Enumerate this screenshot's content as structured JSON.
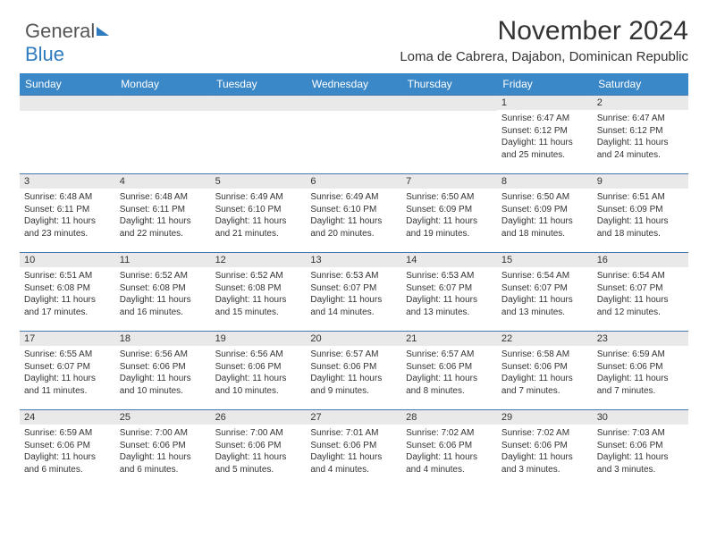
{
  "logo": {
    "part1": "General",
    "part2": "Blue"
  },
  "title": "November 2024",
  "subtitle": "Loma de Cabrera, Dajabon, Dominican Republic",
  "colors": {
    "header_bg": "#3b88c8",
    "header_text": "#ffffff",
    "row_divider": "#4477aa",
    "daynum_bg": "#e9e9e9",
    "text": "#333333",
    "logo_blue": "#2f7bbf"
  },
  "dayNames": [
    "Sunday",
    "Monday",
    "Tuesday",
    "Wednesday",
    "Thursday",
    "Friday",
    "Saturday"
  ],
  "startOffset": 5,
  "days": [
    {
      "n": 1,
      "rise": "6:47 AM",
      "set": "6:12 PM",
      "dl": "11 hours and 25 minutes."
    },
    {
      "n": 2,
      "rise": "6:47 AM",
      "set": "6:12 PM",
      "dl": "11 hours and 24 minutes."
    },
    {
      "n": 3,
      "rise": "6:48 AM",
      "set": "6:11 PM",
      "dl": "11 hours and 23 minutes."
    },
    {
      "n": 4,
      "rise": "6:48 AM",
      "set": "6:11 PM",
      "dl": "11 hours and 22 minutes."
    },
    {
      "n": 5,
      "rise": "6:49 AM",
      "set": "6:10 PM",
      "dl": "11 hours and 21 minutes."
    },
    {
      "n": 6,
      "rise": "6:49 AM",
      "set": "6:10 PM",
      "dl": "11 hours and 20 minutes."
    },
    {
      "n": 7,
      "rise": "6:50 AM",
      "set": "6:09 PM",
      "dl": "11 hours and 19 minutes."
    },
    {
      "n": 8,
      "rise": "6:50 AM",
      "set": "6:09 PM",
      "dl": "11 hours and 18 minutes."
    },
    {
      "n": 9,
      "rise": "6:51 AM",
      "set": "6:09 PM",
      "dl": "11 hours and 18 minutes."
    },
    {
      "n": 10,
      "rise": "6:51 AM",
      "set": "6:08 PM",
      "dl": "11 hours and 17 minutes."
    },
    {
      "n": 11,
      "rise": "6:52 AM",
      "set": "6:08 PM",
      "dl": "11 hours and 16 minutes."
    },
    {
      "n": 12,
      "rise": "6:52 AM",
      "set": "6:08 PM",
      "dl": "11 hours and 15 minutes."
    },
    {
      "n": 13,
      "rise": "6:53 AM",
      "set": "6:07 PM",
      "dl": "11 hours and 14 minutes."
    },
    {
      "n": 14,
      "rise": "6:53 AM",
      "set": "6:07 PM",
      "dl": "11 hours and 13 minutes."
    },
    {
      "n": 15,
      "rise": "6:54 AM",
      "set": "6:07 PM",
      "dl": "11 hours and 13 minutes."
    },
    {
      "n": 16,
      "rise": "6:54 AM",
      "set": "6:07 PM",
      "dl": "11 hours and 12 minutes."
    },
    {
      "n": 17,
      "rise": "6:55 AM",
      "set": "6:07 PM",
      "dl": "11 hours and 11 minutes."
    },
    {
      "n": 18,
      "rise": "6:56 AM",
      "set": "6:06 PM",
      "dl": "11 hours and 10 minutes."
    },
    {
      "n": 19,
      "rise": "6:56 AM",
      "set": "6:06 PM",
      "dl": "11 hours and 10 minutes."
    },
    {
      "n": 20,
      "rise": "6:57 AM",
      "set": "6:06 PM",
      "dl": "11 hours and 9 minutes."
    },
    {
      "n": 21,
      "rise": "6:57 AM",
      "set": "6:06 PM",
      "dl": "11 hours and 8 minutes."
    },
    {
      "n": 22,
      "rise": "6:58 AM",
      "set": "6:06 PM",
      "dl": "11 hours and 7 minutes."
    },
    {
      "n": 23,
      "rise": "6:59 AM",
      "set": "6:06 PM",
      "dl": "11 hours and 7 minutes."
    },
    {
      "n": 24,
      "rise": "6:59 AM",
      "set": "6:06 PM",
      "dl": "11 hours and 6 minutes."
    },
    {
      "n": 25,
      "rise": "7:00 AM",
      "set": "6:06 PM",
      "dl": "11 hours and 6 minutes."
    },
    {
      "n": 26,
      "rise": "7:00 AM",
      "set": "6:06 PM",
      "dl": "11 hours and 5 minutes."
    },
    {
      "n": 27,
      "rise": "7:01 AM",
      "set": "6:06 PM",
      "dl": "11 hours and 4 minutes."
    },
    {
      "n": 28,
      "rise": "7:02 AM",
      "set": "6:06 PM",
      "dl": "11 hours and 4 minutes."
    },
    {
      "n": 29,
      "rise": "7:02 AM",
      "set": "6:06 PM",
      "dl": "11 hours and 3 minutes."
    },
    {
      "n": 30,
      "rise": "7:03 AM",
      "set": "6:06 PM",
      "dl": "11 hours and 3 minutes."
    }
  ],
  "labels": {
    "sunrise": "Sunrise: ",
    "sunset": "Sunset: ",
    "daylight": "Daylight: "
  }
}
